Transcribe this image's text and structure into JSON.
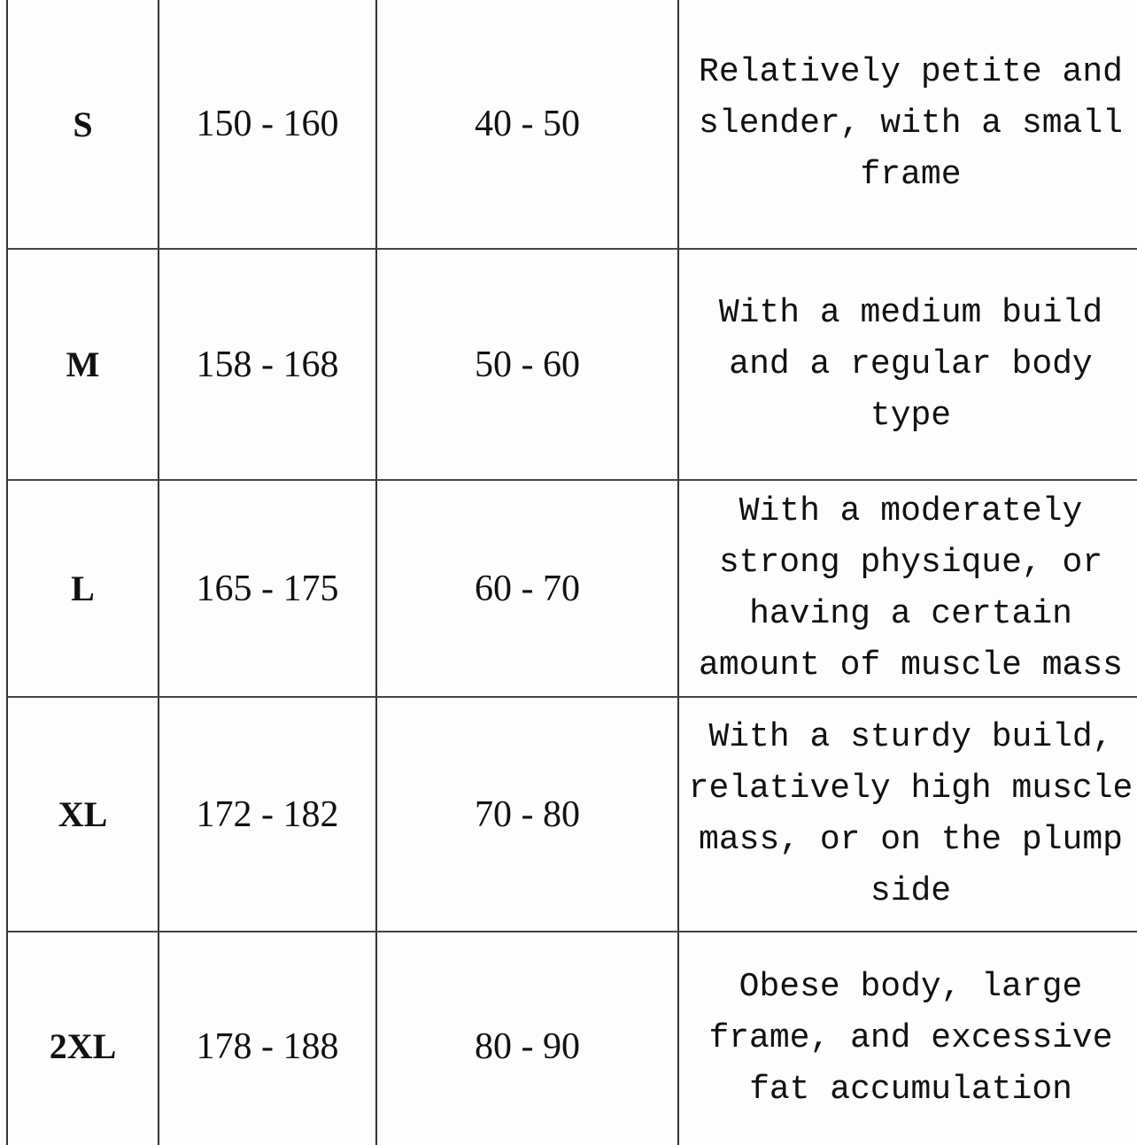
{
  "rows": [
    {
      "size": "S",
      "height": "150 - 160",
      "weight": "40 - 50",
      "description": [
        "Relatively petite and",
        "slender, with a small",
        "frame"
      ]
    },
    {
      "size": "M",
      "height": "158 - 168",
      "weight": "50 - 60",
      "description": [
        "With a medium build",
        "and a regular body",
        "type"
      ]
    },
    {
      "size": "L",
      "height": "165 - 175",
      "weight": "60 - 70",
      "description": [
        "With a moderately",
        "strong physique, or",
        "having a certain",
        "amount of muscle mass"
      ]
    },
    {
      "size": "XL",
      "height": "172 - 182",
      "weight": "70 - 80",
      "description": [
        "With a sturdy build,",
        "relatively high muscle",
        "mass, or on the plump",
        "side"
      ]
    },
    {
      "size": "2XL",
      "height": "178 - 188",
      "weight": "80 - 90",
      "description": [
        "Obese body, large",
        "frame, and excessive",
        "fat accumulation"
      ]
    }
  ]
}
